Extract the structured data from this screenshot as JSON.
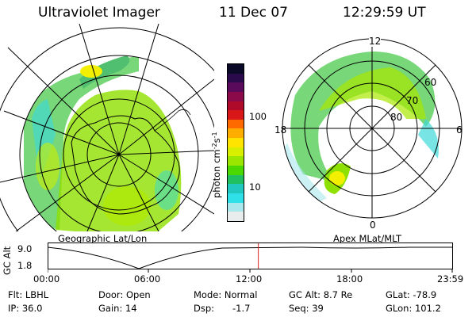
{
  "header": {
    "instrument": "Ultraviolet Imager",
    "date": "11 Dec 07",
    "time": "12:29:59 UT"
  },
  "colorbar": {
    "unit_label": "photon cm",
    "unit_sup1": "-2",
    "unit_s": "s",
    "unit_sup2": "-1",
    "ticks": [
      "100",
      "10"
    ],
    "colors": [
      "#0a0a28",
      "#2a0a4a",
      "#5a0a5a",
      "#8a0a4a",
      "#b00a2a",
      "#d81818",
      "#ff6a00",
      "#ffae00",
      "#ffe400",
      "#d8f000",
      "#9ae600",
      "#4ad800",
      "#20c060",
      "#20c8c0",
      "#30e0e8",
      "#a8e8ec",
      "#e8ecec"
    ]
  },
  "left_map": {
    "caption": "Geographic Lat/Lon"
  },
  "right_map": {
    "caption": "Apex MLat/MLT",
    "mlt_labels": [
      "12",
      "18",
      "6",
      "0"
    ],
    "lat_labels": [
      "60",
      "70",
      "80"
    ]
  },
  "altitude_plot": {
    "ylabel": "GC Alt",
    "yticks": [
      "9.0",
      "1.8"
    ],
    "xticks": [
      "00:00",
      "06:00",
      "12:00",
      "18:00",
      "23:59"
    ],
    "current_marker_hour": 12.5
  },
  "info": {
    "flt": "Flt: LBHL",
    "ip": "IP: 36.0",
    "door": "Door: Open",
    "gain": "Gain: 14",
    "mode": "Mode: Normal",
    "dsp": "Dsp:",
    "dsp_value": "-1.7",
    "gcalt": "GC Alt: 8.7 Re",
    "seq": "Seq: 39",
    "glat": "GLat: -78.9",
    "glon": "GLon: 101.2"
  }
}
